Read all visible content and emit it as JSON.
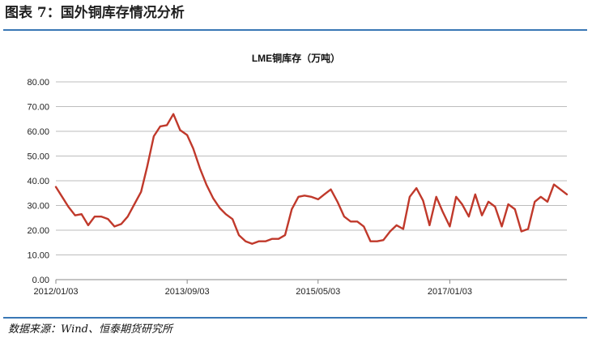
{
  "figure_title": "图表 7：国外铜库存情况分析",
  "source": "数据来源：Wind、恒泰期货研究所",
  "colors": {
    "line": "#c0392b",
    "rule": "#3a77b5",
    "grid": "#bdbdbd"
  },
  "chart_data": {
    "type": "line",
    "title": "LME铜库存（万吨）",
    "xlabel": "",
    "ylabel": "",
    "ylim": [
      0,
      80
    ],
    "yticks": [
      "0.00",
      "10.00",
      "20.00",
      "30.00",
      "40.00",
      "50.00",
      "60.00",
      "70.00",
      "80.00"
    ],
    "xticks": [
      "2012/01/03",
      "2013/09/03",
      "2015/05/03",
      "2017/01/03"
    ],
    "xrange": [
      "2012/01/03",
      "2018/06/30"
    ],
    "grid": true,
    "series": [
      {
        "values": [
          [
            "2012/01/03",
            37.5
          ],
          [
            "2012/02/01",
            33.5
          ],
          [
            "2012/03/01",
            29.5
          ],
          [
            "2012/04/01",
            26.0
          ],
          [
            "2012/05/01",
            26.5
          ],
          [
            "2012/06/01",
            22.0
          ],
          [
            "2012/07/01",
            25.5
          ],
          [
            "2012/08/01",
            25.5
          ],
          [
            "2012/09/01",
            24.5
          ],
          [
            "2012/10/01",
            21.5
          ],
          [
            "2012/11/01",
            22.5
          ],
          [
            "2012/12/01",
            25.5
          ],
          [
            "2013/01/01",
            30.5
          ],
          [
            "2013/02/01",
            35.5
          ],
          [
            "2013/03/01",
            45.5
          ],
          [
            "2013/04/01",
            58.0
          ],
          [
            "2013/05/01",
            62.0
          ],
          [
            "2013/06/01",
            62.5
          ],
          [
            "2013/07/01",
            67.0
          ],
          [
            "2013/08/01",
            60.5
          ],
          [
            "2013/09/03",
            58.5
          ],
          [
            "2013/10/01",
            53.0
          ],
          [
            "2013/11/01",
            45.0
          ],
          [
            "2013/12/01",
            38.5
          ],
          [
            "2014/01/01",
            33.0
          ],
          [
            "2014/02/01",
            29.0
          ],
          [
            "2014/03/01",
            26.5
          ],
          [
            "2014/04/01",
            24.5
          ],
          [
            "2014/05/01",
            18.0
          ],
          [
            "2014/06/01",
            15.5
          ],
          [
            "2014/07/01",
            14.5
          ],
          [
            "2014/08/01",
            15.5
          ],
          [
            "2014/09/01",
            15.5
          ],
          [
            "2014/10/01",
            16.5
          ],
          [
            "2014/11/01",
            16.5
          ],
          [
            "2014/12/01",
            18.0
          ],
          [
            "2015/01/01",
            28.5
          ],
          [
            "2015/02/01",
            33.5
          ],
          [
            "2015/03/01",
            34.0
          ],
          [
            "2015/04/01",
            33.5
          ],
          [
            "2015/05/03",
            32.5
          ],
          [
            "2015/06/01",
            34.5
          ],
          [
            "2015/07/01",
            36.5
          ],
          [
            "2015/08/01",
            31.5
          ],
          [
            "2015/09/01",
            25.5
          ],
          [
            "2015/10/01",
            23.5
          ],
          [
            "2015/11/01",
            23.5
          ],
          [
            "2015/12/01",
            21.5
          ],
          [
            "2016/01/01",
            15.5
          ],
          [
            "2016/02/01",
            15.5
          ],
          [
            "2016/03/01",
            16.0
          ],
          [
            "2016/04/01",
            19.5
          ],
          [
            "2016/05/01",
            22.0
          ],
          [
            "2016/06/01",
            20.5
          ],
          [
            "2016/07/01",
            33.5
          ],
          [
            "2016/08/01",
            37.0
          ],
          [
            "2016/09/01",
            32.0
          ],
          [
            "2016/10/01",
            22.0
          ],
          [
            "2016/11/01",
            33.5
          ],
          [
            "2016/12/01",
            27.5
          ],
          [
            "2017/01/03",
            21.5
          ],
          [
            "2017/02/01",
            33.5
          ],
          [
            "2017/03/01",
            30.5
          ],
          [
            "2017/04/01",
            25.5
          ],
          [
            "2017/05/01",
            34.5
          ],
          [
            "2017/06/01",
            26.0
          ],
          [
            "2017/07/01",
            31.5
          ],
          [
            "2017/08/01",
            29.5
          ],
          [
            "2017/09/01",
            21.5
          ],
          [
            "2017/10/01",
            30.5
          ],
          [
            "2017/11/01",
            28.5
          ],
          [
            "2017/12/01",
            19.5
          ],
          [
            "2018/01/01",
            20.5
          ],
          [
            "2018/02/01",
            31.5
          ],
          [
            "2018/03/01",
            33.5
          ],
          [
            "2018/04/01",
            31.5
          ],
          [
            "2018/05/01",
            38.5
          ],
          [
            "2018/06/30",
            34.5
          ]
        ]
      }
    ]
  }
}
